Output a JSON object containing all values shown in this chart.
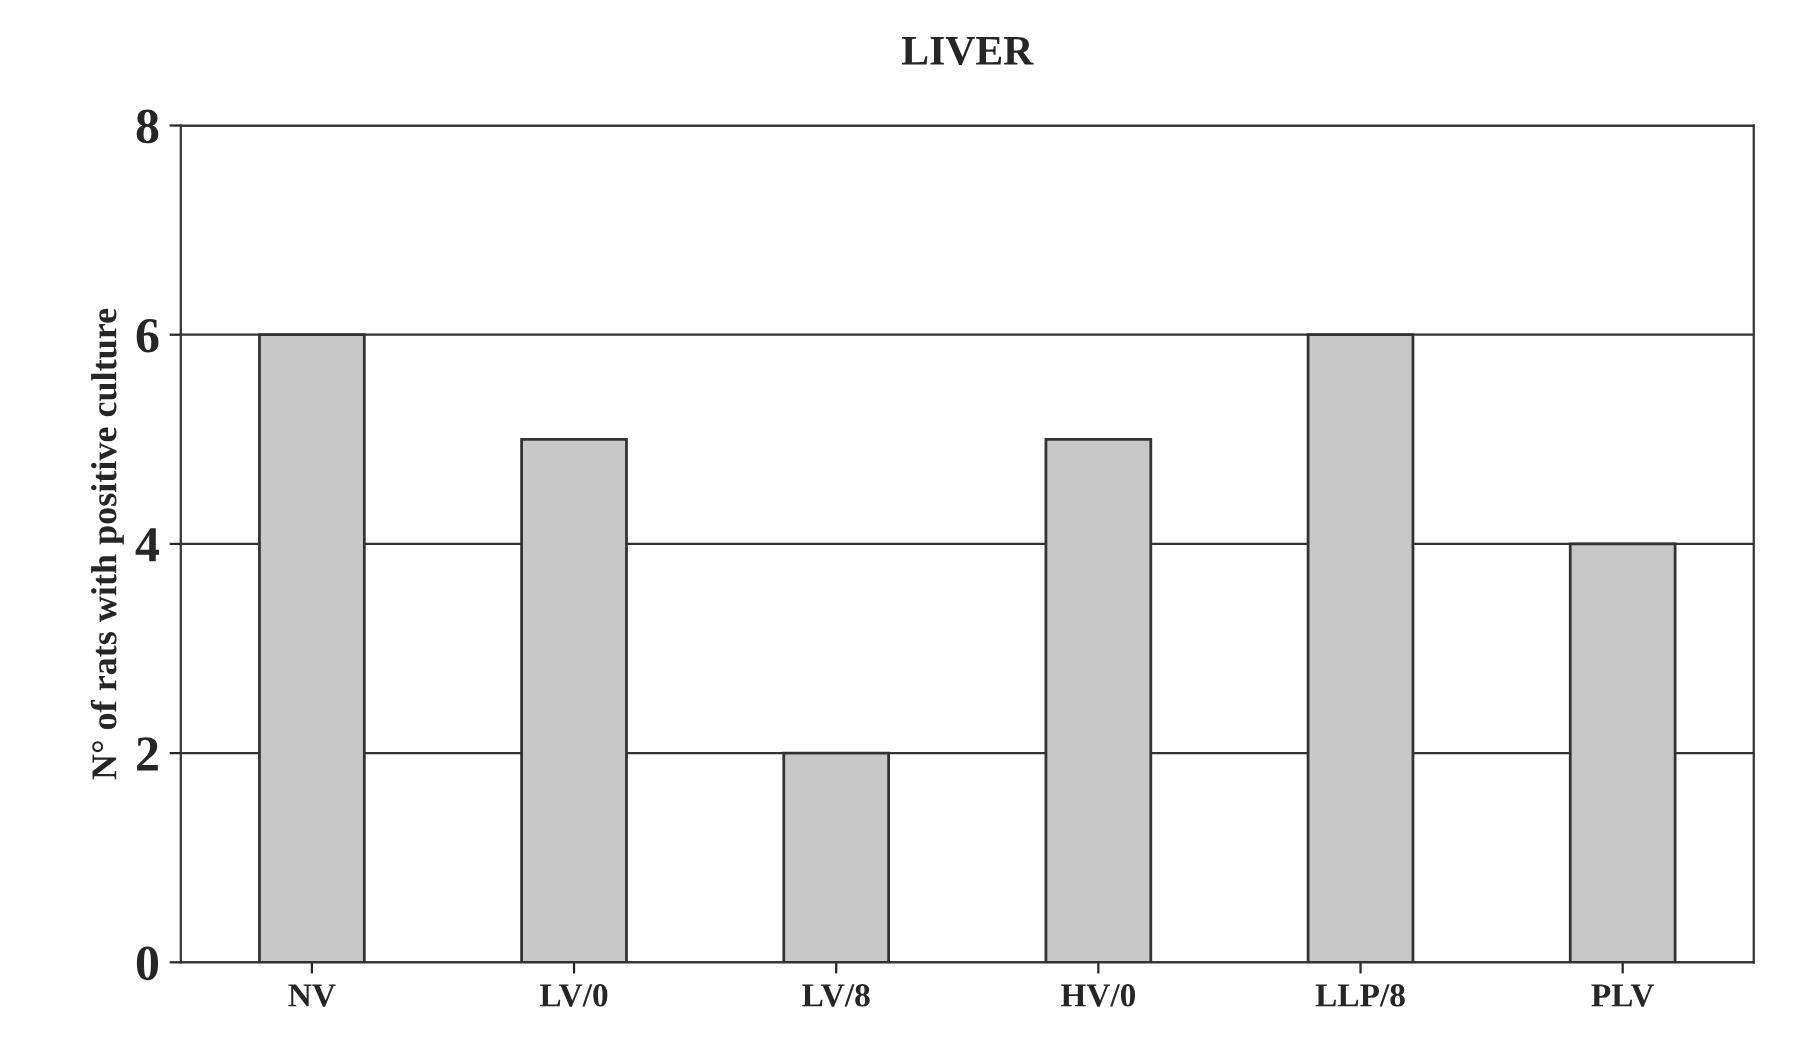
{
  "chart_data": {
    "type": "bar",
    "title": "LIVER",
    "ylabel": "N° of rats with positive culture",
    "categories": [
      "NV",
      "LV/0",
      "LV/8",
      "HV/0",
      "LLP/8",
      "PLV"
    ],
    "values": [
      6,
      5,
      2,
      5,
      6,
      4
    ],
    "color": "#c8c8c8",
    "ylim": [
      0,
      8
    ],
    "yticks": [
      0,
      2,
      4,
      6,
      8
    ],
    "grid": "y"
  }
}
